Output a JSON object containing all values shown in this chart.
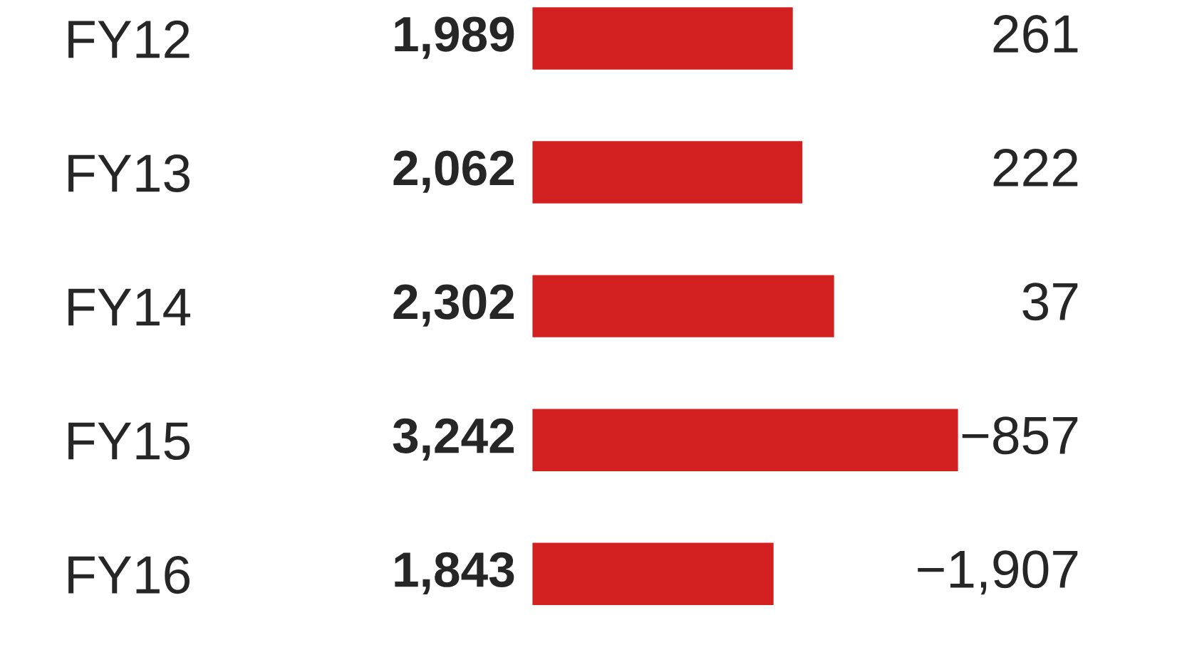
{
  "chart_data": {
    "type": "bar",
    "orientation": "horizontal",
    "categories": [
      "FY12",
      "FY13",
      "FY14",
      "FY15",
      "FY16"
    ],
    "values": [
      1989,
      2062,
      2302,
      3242,
      1843
    ],
    "color": "#d21f1f",
    "data_labels": true,
    "value_labels": [
      "1,989",
      "2,062",
      "2,302",
      "3,242",
      "1,843"
    ],
    "annotations": [
      "261",
      "222",
      "37",
      "−857",
      "−1,907"
    ]
  }
}
